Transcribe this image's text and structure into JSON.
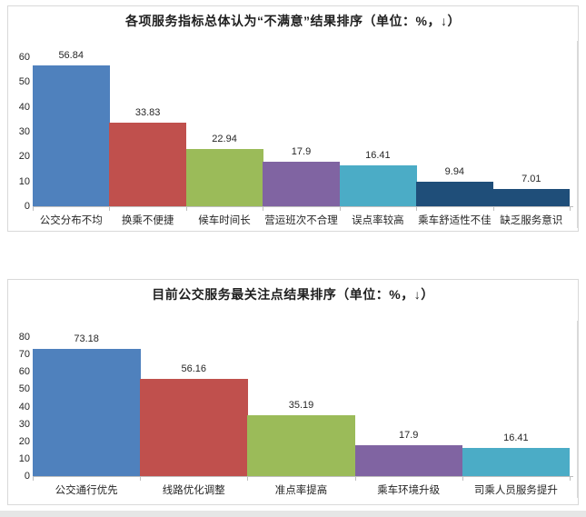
{
  "chart_data": [
    {
      "type": "bar",
      "title": "各项服务指标总体认为“不满意”结果排序（单位：%，↓）",
      "categories": [
        "公交分布不均",
        "换乘不便捷",
        "候车时间长",
        "营运班次不合理",
        "误点率较高",
        "乘车舒适性不佳",
        "缺乏服务意识"
      ],
      "values": [
        56.84,
        33.83,
        22.94,
        17.9,
        16.41,
        9.94,
        7.01
      ],
      "value_labels": [
        "56.84",
        "33.83",
        "22.94",
        "17.9",
        "16.41",
        "9.94",
        "7.01"
      ],
      "xlabel": "",
      "ylabel": "",
      "ylim": [
        0,
        60
      ],
      "yticks": [
        0,
        10,
        20,
        30,
        40,
        50,
        60
      ],
      "bar_colors": [
        "#4F81BD",
        "#C0504D",
        "#9BBB59",
        "#8064A2",
        "#4BACC6",
        "#1F4E79",
        "#1F4E79"
      ],
      "grid": false,
      "legend": "none",
      "bar_gap": 0
    },
    {
      "type": "bar",
      "title": "目前公交服务最关注点结果排序（单位：%，↓）",
      "categories": [
        "公交通行优先",
        "线路优化调整",
        "准点率提高",
        "乘车环境升级",
        "司乘人员服务提升"
      ],
      "values": [
        73.18,
        56.16,
        35.19,
        17.9,
        16.41
      ],
      "value_labels": [
        "73.18",
        "56.16",
        "35.19",
        "17.9",
        "16.41"
      ],
      "xlabel": "",
      "ylabel": "",
      "ylim": [
        0,
        80
      ],
      "yticks": [
        0,
        10,
        20,
        30,
        40,
        50,
        60,
        70,
        80
      ],
      "bar_colors": [
        "#4F81BD",
        "#C0504D",
        "#9BBB59",
        "#8064A2",
        "#4BACC6"
      ],
      "grid": false,
      "legend": "none",
      "bar_gap": 0
    }
  ],
  "page": {
    "background_color": "#ffffff",
    "panel_border_color": "#d9d9d9",
    "axis_color": "#bfbfbf",
    "text_color": "#262626"
  }
}
